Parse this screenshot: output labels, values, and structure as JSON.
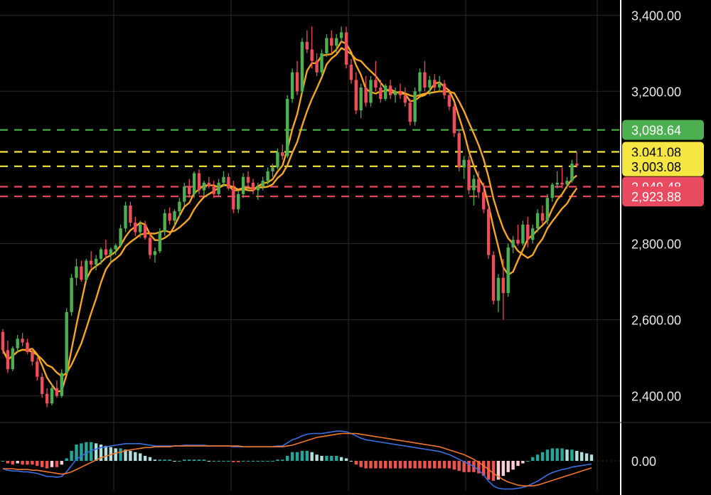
{
  "chart_data": {
    "type": "candlestick",
    "title": "",
    "price_axis": {
      "ylim": [
        2330,
        3440
      ],
      "ticks": [
        {
          "value": 3400,
          "label": "3,400.00"
        },
        {
          "value": 3200,
          "label": "3,200.00"
        },
        {
          "value": 2800,
          "label": "2,800.00"
        },
        {
          "value": 2600,
          "label": "2,600.00"
        },
        {
          "value": 2400,
          "label": "2,400.00"
        }
      ]
    },
    "price_levels": [
      {
        "value": 3098.64,
        "label": "3,098.64",
        "color": "#4caf50",
        "text_color": "#ffffff"
      },
      {
        "value": 3041.08,
        "label": "3,041.08",
        "color": "#f5e642",
        "text_color": "#000000"
      },
      {
        "value": 3003.08,
        "label": "3,003.08",
        "color": "#f5e642",
        "text_color": "#000000"
      },
      {
        "value": 2949.48,
        "label": "2,949.48",
        "color": "#e84a5f",
        "text_color": "#ffffff"
      },
      {
        "value": 2923.88,
        "label": "2,923.88",
        "color": "#e84a5f",
        "text_color": "#ffffff"
      }
    ],
    "indicator_axis": {
      "ticks": [
        {
          "value": 0,
          "label": "0.00"
        }
      ]
    },
    "colors": {
      "up": "#4caf50",
      "down": "#ef4d5a",
      "ma": "#f5a623",
      "macd_line": "#3b6fe0",
      "signal_line": "#f0782d",
      "hist_pos": "#26a69a",
      "hist_pos_fade": "#b2dfdb",
      "hist_neg": "#ef5350",
      "hist_neg_fade": "#ffcdd2",
      "grid": "#1f1f1f"
    },
    "ohlc": [
      [
        2568,
        2575,
        2510,
        2520
      ],
      [
        2520,
        2545,
        2460,
        2470
      ],
      [
        2470,
        2530,
        2465,
        2525
      ],
      [
        2525,
        2560,
        2515,
        2550
      ],
      [
        2550,
        2565,
        2530,
        2540
      ],
      [
        2540,
        2550,
        2510,
        2515
      ],
      [
        2515,
        2525,
        2480,
        2490
      ],
      [
        2490,
        2500,
        2440,
        2450
      ],
      [
        2450,
        2460,
        2395,
        2405
      ],
      [
        2405,
        2420,
        2370,
        2380
      ],
      [
        2380,
        2430,
        2375,
        2420
      ],
      [
        2420,
        2440,
        2395,
        2400
      ],
      [
        2400,
        2470,
        2395,
        2460
      ],
      [
        2460,
        2630,
        2455,
        2620
      ],
      [
        2620,
        2720,
        2610,
        2710
      ],
      [
        2710,
        2760,
        2690,
        2740
      ],
      [
        2740,
        2755,
        2700,
        2705
      ],
      [
        2705,
        2760,
        2700,
        2755
      ],
      [
        2755,
        2780,
        2735,
        2745
      ],
      [
        2745,
        2770,
        2730,
        2760
      ],
      [
        2760,
        2790,
        2745,
        2785
      ],
      [
        2785,
        2810,
        2760,
        2770
      ],
      [
        2770,
        2790,
        2750,
        2785
      ],
      [
        2785,
        2800,
        2770,
        2795
      ],
      [
        2795,
        2850,
        2790,
        2840
      ],
      [
        2840,
        2910,
        2830,
        2900
      ],
      [
        2900,
        2910,
        2845,
        2855
      ],
      [
        2855,
        2870,
        2820,
        2830
      ],
      [
        2830,
        2860,
        2815,
        2850
      ],
      [
        2850,
        2860,
        2810,
        2815
      ],
      [
        2815,
        2830,
        2760,
        2770
      ],
      [
        2770,
        2790,
        2750,
        2780
      ],
      [
        2780,
        2840,
        2775,
        2830
      ],
      [
        2830,
        2890,
        2820,
        2880
      ],
      [
        2880,
        2895,
        2850,
        2860
      ],
      [
        2860,
        2890,
        2845,
        2885
      ],
      [
        2885,
        2920,
        2870,
        2910
      ],
      [
        2910,
        2960,
        2900,
        2950
      ],
      [
        2950,
        2970,
        2920,
        2930
      ],
      [
        2930,
        2990,
        2920,
        2985
      ],
      [
        2985,
        2995,
        2930,
        2940
      ],
      [
        2940,
        2965,
        2925,
        2960
      ],
      [
        2960,
        2975,
        2945,
        2950
      ],
      [
        2950,
        2965,
        2920,
        2930
      ],
      [
        2930,
        2970,
        2925,
        2960
      ],
      [
        2960,
        2990,
        2950,
        2975
      ],
      [
        2975,
        2985,
        2940,
        2945
      ],
      [
        2945,
        2965,
        2880,
        2890
      ],
      [
        2890,
        2940,
        2880,
        2930
      ],
      [
        2930,
        2985,
        2920,
        2975
      ],
      [
        2975,
        2990,
        2950,
        2960
      ],
      [
        2960,
        2970,
        2930,
        2940
      ],
      [
        2940,
        2960,
        2915,
        2950
      ],
      [
        2950,
        2975,
        2940,
        2965
      ],
      [
        2965,
        3000,
        2955,
        2990
      ],
      [
        2990,
        3010,
        2975,
        3000
      ],
      [
        3000,
        3050,
        2995,
        3040
      ],
      [
        3040,
        3060,
        3020,
        3030
      ],
      [
        3030,
        3190,
        3025,
        3180
      ],
      [
        3180,
        3260,
        3170,
        3250
      ],
      [
        3250,
        3280,
        3190,
        3200
      ],
      [
        3200,
        3340,
        3195,
        3330
      ],
      [
        3330,
        3360,
        3300,
        3310
      ],
      [
        3310,
        3370,
        3260,
        3280
      ],
      [
        3280,
        3300,
        3240,
        3250
      ],
      [
        3250,
        3310,
        3240,
        3300
      ],
      [
        3300,
        3350,
        3290,
        3340
      ],
      [
        3340,
        3360,
        3300,
        3320
      ],
      [
        3320,
        3350,
        3300,
        3340
      ],
      [
        3340,
        3370,
        3330,
        3355
      ],
      [
        3355,
        3370,
        3260,
        3270
      ],
      [
        3270,
        3285,
        3220,
        3230
      ],
      [
        3230,
        3250,
        3140,
        3150
      ],
      [
        3150,
        3220,
        3130,
        3210
      ],
      [
        3210,
        3240,
        3160,
        3170
      ],
      [
        3170,
        3240,
        3160,
        3230
      ],
      [
        3230,
        3280,
        3200,
        3210
      ],
      [
        3210,
        3230,
        3170,
        3180
      ],
      [
        3180,
        3220,
        3175,
        3215
      ],
      [
        3215,
        3230,
        3180,
        3190
      ],
      [
        3190,
        3210,
        3170,
        3200
      ],
      [
        3200,
        3220,
        3180,
        3190
      ],
      [
        3190,
        3210,
        3160,
        3170
      ],
      [
        3170,
        3180,
        3110,
        3120
      ],
      [
        3120,
        3210,
        3110,
        3200
      ],
      [
        3200,
        3260,
        3190,
        3250
      ],
      [
        3250,
        3280,
        3200,
        3210
      ],
      [
        3210,
        3240,
        3190,
        3230
      ],
      [
        3230,
        3245,
        3200,
        3210
      ],
      [
        3210,
        3240,
        3200,
        3220
      ],
      [
        3220,
        3230,
        3180,
        3190
      ],
      [
        3190,
        3200,
        3150,
        3160
      ],
      [
        3160,
        3170,
        3080,
        3090
      ],
      [
        3090,
        3100,
        2990,
        3000
      ],
      [
        3000,
        3030,
        2970,
        3020
      ],
      [
        3020,
        3030,
        2930,
        2940
      ],
      [
        2940,
        2980,
        2900,
        2970
      ],
      [
        2970,
        2990,
        2920,
        2935
      ],
      [
        2935,
        2960,
        2880,
        2890
      ],
      [
        2890,
        2900,
        2760,
        2770
      ],
      [
        2770,
        2780,
        2640,
        2650
      ],
      [
        2650,
        2720,
        2620,
        2710
      ],
      [
        2710,
        2760,
        2600,
        2670
      ],
      [
        2670,
        2800,
        2660,
        2790
      ],
      [
        2790,
        2820,
        2775,
        2810
      ],
      [
        2810,
        2850,
        2795,
        2800
      ],
      [
        2800,
        2860,
        2795,
        2850
      ],
      [
        2850,
        2870,
        2790,
        2810
      ],
      [
        2810,
        2850,
        2800,
        2840
      ],
      [
        2840,
        2890,
        2830,
        2880
      ],
      [
        2880,
        2900,
        2850,
        2860
      ],
      [
        2860,
        2930,
        2850,
        2920
      ],
      [
        2920,
        2960,
        2910,
        2955
      ],
      [
        2955,
        2990,
        2945,
        2960
      ],
      [
        2960,
        3000,
        2945,
        2955
      ],
      [
        2955,
        2975,
        2945,
        2965
      ],
      [
        2965,
        3020,
        2960,
        3010
      ],
      [
        3010,
        3040,
        3000,
        3005
      ]
    ],
    "macd": [
      -10,
      -12,
      -13,
      -13,
      -14,
      -14,
      -15,
      -16,
      -18,
      -20,
      -20,
      -21,
      -20,
      -14,
      -6,
      2,
      6,
      10,
      13,
      15,
      17,
      18,
      19,
      20,
      21,
      22,
      22,
      22,
      22,
      21,
      20,
      19,
      19,
      19,
      19,
      19,
      19,
      20,
      20,
      20,
      20,
      20,
      19,
      19,
      19,
      19,
      19,
      18,
      18,
      18,
      18,
      18,
      18,
      18,
      18,
      18,
      19,
      19,
      23,
      27,
      29,
      32,
      34,
      35,
      35,
      35,
      36,
      37,
      38,
      38,
      37,
      35,
      32,
      29,
      27,
      26,
      25,
      24,
      23,
      22,
      21,
      20,
      19,
      18,
      17,
      16,
      15,
      14,
      13,
      12,
      10,
      8,
      5,
      2,
      -1,
      -4,
      -7,
      -12,
      -18,
      -26,
      -32,
      -35,
      -36,
      -36,
      -36,
      -35,
      -34,
      -32,
      -29,
      -26,
      -22,
      -18,
      -15,
      -13,
      -11,
      -10,
      -8,
      -7,
      -6,
      -5,
      -4
    ],
    "signal": [
      -10,
      -10,
      -10,
      -11,
      -11,
      -11,
      -12,
      -12,
      -13,
      -14,
      -15,
      -16,
      -17,
      -16,
      -14,
      -11,
      -8,
      -5,
      -2,
      1,
      4,
      6,
      8,
      10,
      11,
      13,
      14,
      15,
      16,
      17,
      17,
      18,
      18,
      18,
      18,
      19,
      19,
      19,
      19,
      19,
      19,
      19,
      19,
      19,
      19,
      19,
      19,
      19,
      19,
      18,
      18,
      18,
      18,
      18,
      18,
      18,
      18,
      18,
      19,
      20,
      22,
      24,
      26,
      28,
      30,
      31,
      32,
      33,
      34,
      35,
      35,
      35,
      35,
      34,
      33,
      32,
      31,
      30,
      29,
      28,
      27,
      26,
      25,
      24,
      23,
      22,
      21,
      20,
      19,
      18,
      16,
      14,
      12,
      10,
      8,
      5,
      2,
      -2,
      -6,
      -11,
      -16,
      -20,
      -24,
      -27,
      -29,
      -31,
      -32,
      -32,
      -32,
      -31,
      -29,
      -27,
      -25,
      -23,
      -21,
      -19,
      -17,
      -15,
      -13,
      -11,
      -9
    ]
  }
}
